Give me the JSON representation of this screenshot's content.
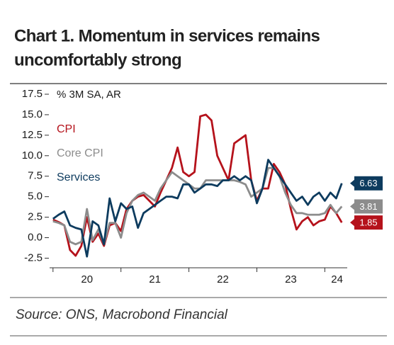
{
  "chart_data": {
    "type": "line",
    "title_lines": [
      "Chart 1. Momentum in services remains",
      "uncomfortably strong"
    ],
    "y_label": "% 3M SA, AR",
    "source": "Source: ONS, Macrobond Financial",
    "x": [
      2020,
      2020.083,
      2020.167,
      2020.25,
      2020.333,
      2020.417,
      2020.5,
      2020.583,
      2020.667,
      2020.75,
      2020.833,
      2020.917,
      2021,
      2021.083,
      2021.167,
      2021.25,
      2021.333,
      2021.417,
      2021.5,
      2021.583,
      2021.667,
      2021.75,
      2021.833,
      2021.917,
      2022,
      2022.083,
      2022.167,
      2022.25,
      2022.333,
      2022.417,
      2022.5,
      2022.583,
      2022.667,
      2022.75,
      2022.833,
      2022.917,
      2023,
      2023.083,
      2023.167,
      2023.25,
      2023.333,
      2023.417,
      2023.5,
      2023.583,
      2023.667,
      2023.75,
      2023.833,
      2023.917,
      2024,
      2024.083,
      2024.167,
      2024.25
    ],
    "series": [
      {
        "name": "CPI",
        "color": "#b5121b",
        "values": [
          2.2,
          1.9,
          1.5,
          -1.5,
          -2.2,
          -1.0,
          2.5,
          -0.5,
          0.5,
          -1.0,
          1.5,
          1.8,
          0.8,
          3.5,
          4.5,
          5.0,
          5.2,
          4.5,
          3.8,
          5.5,
          7.0,
          8.5,
          11.0,
          8.0,
          7.5,
          8.0,
          14.8,
          15.0,
          14.3,
          10.0,
          8.5,
          7.0,
          11.5,
          12.0,
          12.5,
          7.0,
          4.5,
          6.0,
          6.0,
          9.0,
          8.0,
          6.5,
          3.5,
          1.0,
          2.0,
          2.5,
          1.5,
          2.0,
          2.2,
          3.8,
          3.0,
          1.85
        ]
      },
      {
        "name": "Core CPI",
        "color": "#8c8c8c",
        "values": [
          2.0,
          1.8,
          1.5,
          -0.5,
          -0.8,
          -0.5,
          3.5,
          -0.3,
          1.0,
          -0.8,
          1.8,
          1.8,
          0.0,
          3.0,
          4.5,
          5.2,
          5.5,
          5.0,
          4.5,
          6.0,
          7.0,
          8.0,
          7.5,
          7.0,
          6.5,
          6.0,
          6.0,
          7.0,
          7.0,
          7.0,
          7.0,
          7.0,
          7.0,
          6.8,
          6.5,
          5.0,
          5.5,
          6.0,
          8.5,
          8.5,
          7.5,
          5.5,
          4.0,
          3.0,
          3.0,
          2.8,
          2.8,
          2.8,
          3.0,
          4.0,
          3.0,
          3.81
        ]
      },
      {
        "name": "Services",
        "color": "#0d3b5e",
        "values": [
          2.3,
          2.8,
          3.2,
          1.5,
          1.2,
          1.0,
          -2.3,
          2.0,
          1.5,
          -0.8,
          4.8,
          2.0,
          4.2,
          3.5,
          3.8,
          1.2,
          3.0,
          3.5,
          4.0,
          4.5,
          5.0,
          5.0,
          4.8,
          6.5,
          6.5,
          5.5,
          6.0,
          6.5,
          6.5,
          6.3,
          7.0,
          7.0,
          7.5,
          7.0,
          7.5,
          7.0,
          4.2,
          6.0,
          9.5,
          8.5,
          7.5,
          6.5,
          5.5,
          4.5,
          5.0,
          4.0,
          5.0,
          5.5,
          4.5,
          5.5,
          4.8,
          6.63
        ]
      }
    ],
    "xlim": [
      2019.95,
      2024.33
    ],
    "xticks": [
      {
        "value": 2020.5,
        "label": "20"
      },
      {
        "value": 2021.5,
        "label": "21"
      },
      {
        "value": 2022.5,
        "label": "22"
      },
      {
        "value": 2023.5,
        "label": "23"
      },
      {
        "value": 2024.18,
        "label": "24"
      }
    ],
    "xminorticks": [
      2020,
      2021,
      2022,
      2023,
      2024
    ],
    "ylim": [
      -3.5,
      17.5
    ],
    "yticks": [
      17.5,
      {
        "value": 15,
        "label": "15.0"
      },
      12.5,
      {
        "value": 10,
        "label": "10.0"
      },
      7.5,
      {
        "value": 5,
        "label": "5.0"
      },
      2.5,
      {
        "value": 0,
        "label": "0.0"
      },
      -2.5
    ],
    "grid": false
  }
}
